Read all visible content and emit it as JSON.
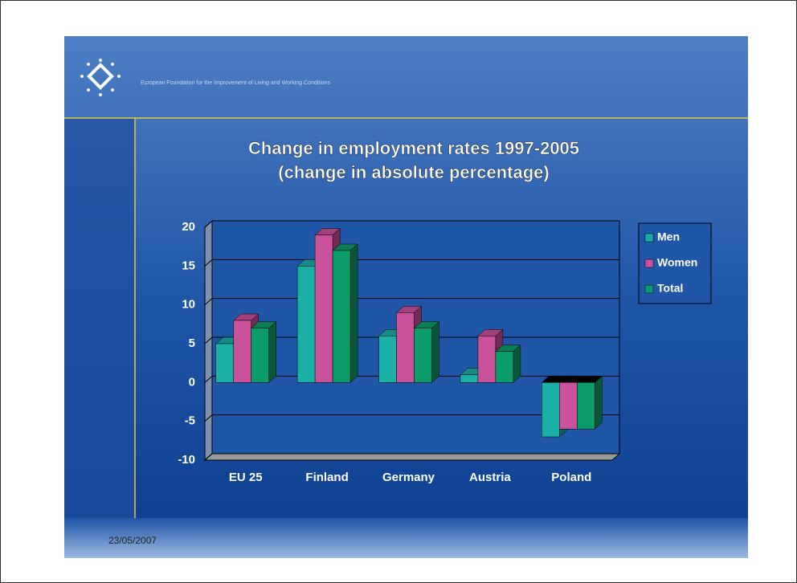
{
  "header": {
    "organisation": "European Foundation for the Improvement of Living and Working Conditions"
  },
  "footer": {
    "date": "23/05/2007"
  },
  "chart_data": {
    "type": "bar3d",
    "title": "Change in employment rates 1997-2005",
    "subtitle": "(change in absolute percentage)",
    "categories": [
      "EU 25",
      "Finland",
      "Germany",
      "Austria",
      "Poland"
    ],
    "series": [
      {
        "name": "Men",
        "color": "#1ab0a6",
        "values": [
          5,
          15,
          6,
          1,
          -7
        ]
      },
      {
        "name": "Women",
        "color": "#c9529a",
        "values": [
          8,
          19,
          9,
          6,
          -6
        ]
      },
      {
        "name": "Total",
        "color": "#0c9c6c",
        "values": [
          7,
          17,
          7,
          4,
          -6
        ]
      }
    ],
    "ylim": [
      -10,
      20
    ],
    "yticks": [
      -10,
      -5,
      0,
      5,
      10,
      15,
      20
    ],
    "grid": true,
    "legend": "right"
  }
}
